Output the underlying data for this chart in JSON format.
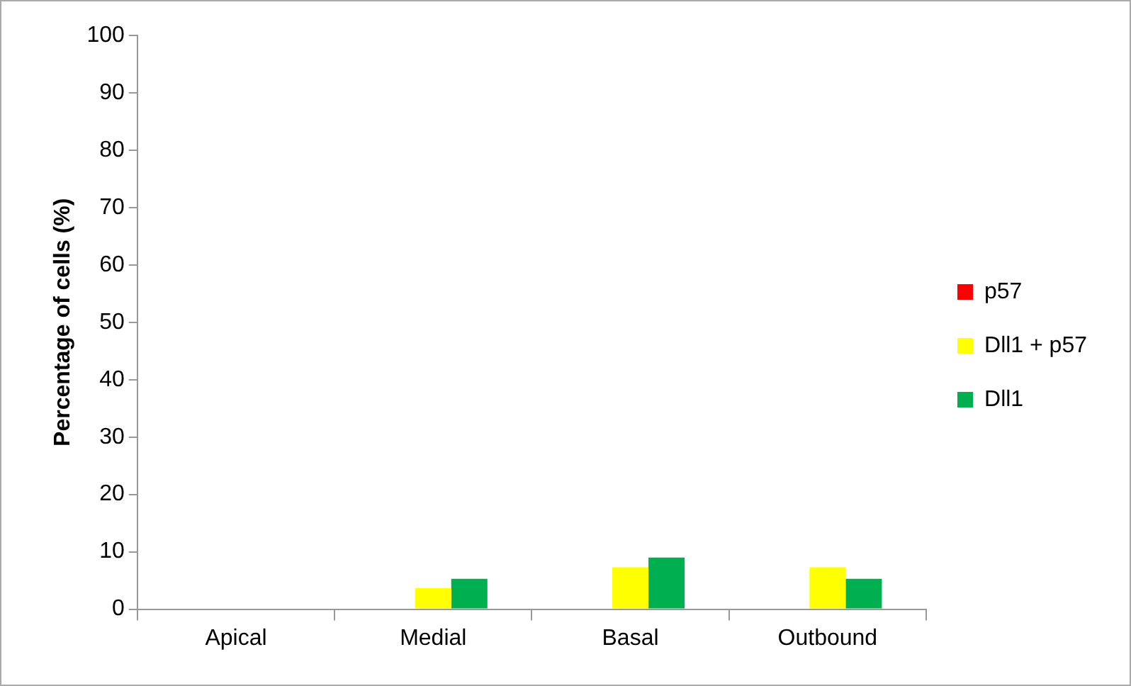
{
  "chart_data": {
    "type": "bar",
    "ylabel": "Percentage of cells (%)",
    "categories": [
      "Apical",
      "Medial",
      "Basal",
      "Outbound"
    ],
    "series": [
      {
        "name": "p57",
        "color": "#ff0000",
        "values": [
          0,
          0,
          0,
          0
        ]
      },
      {
        "name": "Dll1 + p57",
        "color": "#ffff00",
        "values": [
          0,
          3.7,
          7.3,
          7.3
        ]
      },
      {
        "name": "Dll1",
        "color": "#00b050",
        "values": [
          0,
          5.3,
          9.0,
          5.3
        ]
      }
    ],
    "ylim": [
      0,
      100
    ],
    "yticks": [
      0,
      10,
      20,
      30,
      40,
      50,
      60,
      70,
      80,
      90,
      100
    ],
    "grid": false,
    "legend": "right"
  }
}
